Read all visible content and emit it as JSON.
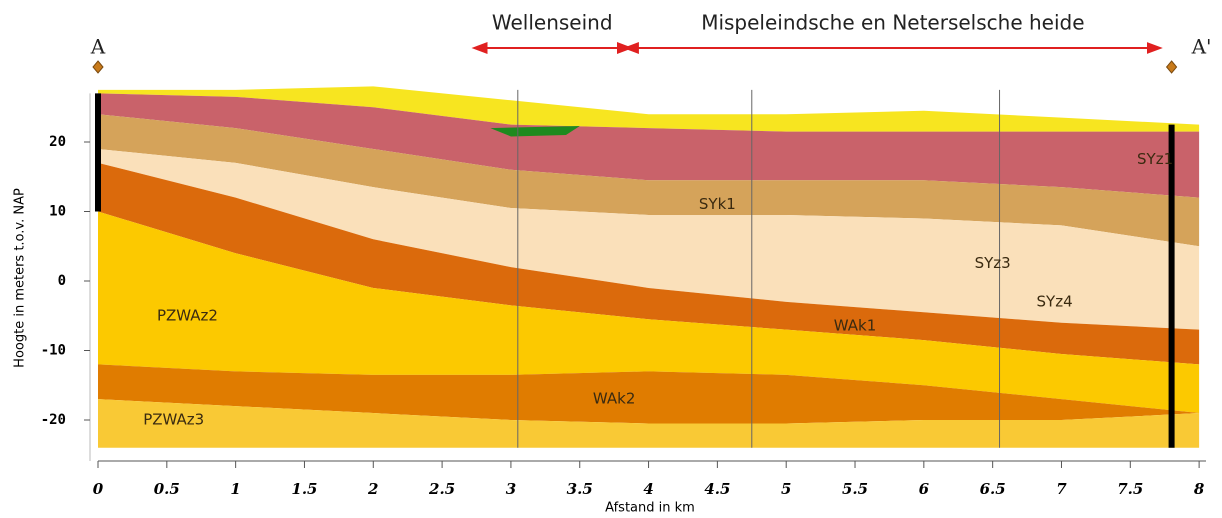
{
  "chart_data": {
    "type": "cross-section",
    "xlabel": "Afstand in km",
    "ylabel": "Hoogte in meters t.o.v. NAP",
    "xlim": [
      0,
      8.05
    ],
    "ylim": [
      -26,
      27
    ],
    "xticks": [
      0,
      0.5,
      1,
      1.5,
      2,
      2.5,
      3,
      3.5,
      4,
      4.5,
      5,
      5.5,
      6,
      6.5,
      7,
      7.5,
      8
    ],
    "yticks": [
      20,
      10,
      0,
      -10,
      -20
    ],
    "x": [
      0,
      1,
      2,
      3,
      4,
      5,
      6,
      7,
      8
    ],
    "boundaries": [
      {
        "values": [
          27.5,
          27.5,
          28,
          26,
          24,
          24,
          24.5,
          23.5,
          22.5
        ]
      },
      {
        "values": [
          27,
          26.5,
          25,
          22.5,
          22,
          21.5,
          21.5,
          21.5,
          21.5
        ]
      },
      {
        "values": [
          24,
          22,
          19,
          16,
          14.5,
          14.5,
          14.5,
          13.5,
          12
        ]
      },
      {
        "values": [
          19,
          17,
          13.5,
          10.5,
          9.5,
          9.5,
          9,
          8,
          5
        ]
      },
      {
        "values": [
          17,
          12,
          6,
          2,
          -1,
          -3,
          -4.5,
          -6,
          -7
        ]
      },
      {
        "values": [
          10,
          4,
          -1,
          -3.5,
          -5.5,
          -7,
          -8.5,
          -10.5,
          -12
        ]
      },
      {
        "values": [
          -12,
          -13,
          -13.5,
          -13.5,
          -13,
          -13.5,
          -15,
          -17,
          -19
        ]
      },
      {
        "values": [
          -17,
          -18,
          -19,
          -20,
          -20.5,
          -20.5,
          -20,
          -20,
          -19
        ]
      },
      {
        "values": [
          -24,
          -24,
          -24,
          -24,
          -24,
          -24,
          -24,
          -24,
          -24
        ]
      }
    ],
    "layers": [
      {
        "color": "#f7e520"
      },
      {
        "color": "#c9626a"
      },
      {
        "color": "#d5a35a"
      },
      {
        "color": "#fae0ba"
      },
      {
        "color": "#db6a0c"
      },
      {
        "color": "#fcc900"
      },
      {
        "color": "#e07c00"
      },
      {
        "color": "#f9c935"
      }
    ],
    "layer_labels": [
      {
        "text": "SYz1",
        "x": 7.68,
        "y": 17.5
      },
      {
        "text": "SYk1",
        "x": 4.5,
        "y": 11
      },
      {
        "text": "SYz3",
        "x": 6.5,
        "y": 2.5
      },
      {
        "text": "SYz4",
        "x": 6.95,
        "y": -3
      },
      {
        "text": "WAk1",
        "x": 5.5,
        "y": -6.5
      },
      {
        "text": "PZWAz2",
        "x": 0.65,
        "y": -5
      },
      {
        "text": "WAk2",
        "x": 3.75,
        "y": -17
      },
      {
        "text": "PZWAz3",
        "x": 0.55,
        "y": -20
      }
    ],
    "section_lines": [
      3.05,
      4.75,
      6.55
    ],
    "boreholes": [
      {
        "x": 0,
        "top": 27,
        "bottom": 10
      },
      {
        "x": 7.8,
        "top": 22.5,
        "bottom": -24
      }
    ],
    "endpoints": [
      {
        "text": "A",
        "x": 0
      },
      {
        "text": "A'",
        "x": 7.8
      }
    ],
    "regions": [
      {
        "text": "Wellenseind",
        "from": 2.75,
        "to": 3.85
      },
      {
        "text": "Mispeleindsche en Neterselsche heide",
        "from": 3.85,
        "to": 7.7
      }
    ]
  }
}
